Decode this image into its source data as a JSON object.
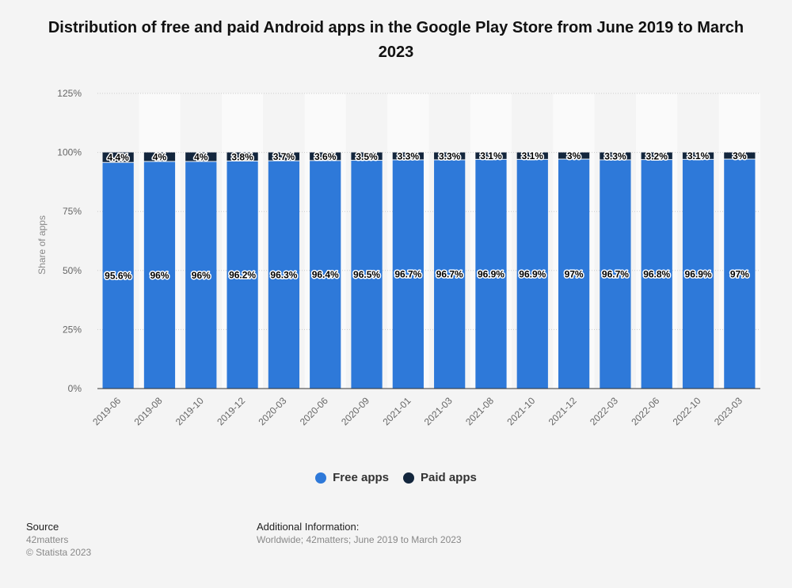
{
  "title": "Distribution of free and paid Android apps in the Google Play Store from June 2019 to March 2023",
  "chart_data": {
    "type": "bar",
    "stacked": true,
    "categories": [
      "2019-06",
      "2019-08",
      "2019-10",
      "2019-12",
      "2020-03",
      "2020-06",
      "2020-09",
      "2021-01",
      "2021-03",
      "2021-08",
      "2021-10",
      "2021-12",
      "2022-03",
      "2022-06",
      "2022-10",
      "2023-03"
    ],
    "series": [
      {
        "name": "Free apps",
        "color": "#2e79d9",
        "values": [
          95.6,
          96,
          96,
          96.2,
          96.3,
          96.4,
          96.5,
          96.7,
          96.7,
          96.9,
          96.9,
          97,
          96.7,
          96.8,
          96.9,
          97
        ]
      },
      {
        "name": "Paid apps",
        "color": "#13263d",
        "values": [
          4.4,
          4,
          4,
          3.8,
          3.7,
          3.6,
          3.5,
          3.3,
          3.3,
          3.1,
          3.1,
          3,
          3.3,
          3.2,
          3.1,
          3
        ]
      }
    ],
    "ylabel": "Share of apps",
    "yticks": [
      0,
      25,
      50,
      75,
      100,
      125
    ],
    "ytick_suffix": "%",
    "ylim": [
      0,
      125
    ],
    "grid": true,
    "legend_position": "bottom"
  },
  "legend": [
    {
      "label": "Free apps",
      "color": "#2e79d9"
    },
    {
      "label": "Paid apps",
      "color": "#13263d"
    }
  ],
  "source": {
    "heading": "Source",
    "line1": "42matters",
    "line2": "© Statista 2023"
  },
  "additional_info": {
    "heading": "Additional Information:",
    "text": "Worldwide; 42matters; June 2019 to March 2023"
  }
}
